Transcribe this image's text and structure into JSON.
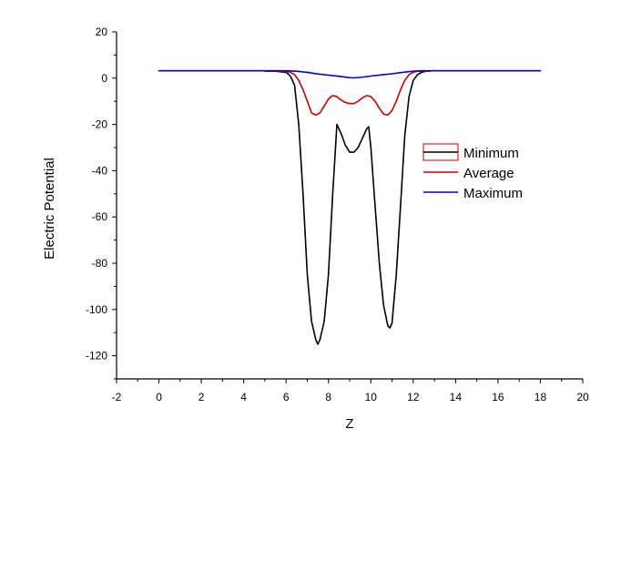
{
  "chart_data": {
    "type": "line",
    "title": "",
    "xlabel": "Z",
    "ylabel": "Electric Potential",
    "xlim": [
      -2,
      20
    ],
    "ylim": [
      -130,
      20
    ],
    "xticks": [
      "-2",
      "0",
      "2",
      "4",
      "6",
      "8",
      "10",
      "12",
      "14",
      "16",
      "18",
      "20"
    ],
    "yticks": [
      "20",
      "0",
      "-20",
      "-40",
      "-60",
      "-80",
      "-100",
      "-120"
    ],
    "grid": false,
    "legend_position": "right",
    "series": [
      {
        "name": "Minimum",
        "color": "#000000",
        "x": [
          5.0,
          5.5,
          6.0,
          6.2,
          6.4,
          6.6,
          6.8,
          7.0,
          7.2,
          7.4,
          7.5,
          7.6,
          7.8,
          8.0,
          8.2,
          8.4,
          8.6,
          8.8,
          9.0,
          9.2,
          9.4,
          9.6,
          9.8,
          9.9,
          10.0,
          10.2,
          10.4,
          10.6,
          10.8,
          10.9,
          11.0,
          11.2,
          11.4,
          11.6,
          11.8,
          12.0,
          12.2,
          12.4,
          12.6,
          12.8
        ],
        "y": [
          3,
          3,
          2.5,
          1,
          -3,
          -20,
          -50,
          -85,
          -105,
          -113,
          -115,
          -113,
          -105,
          -85,
          -50,
          -20,
          -24,
          -29,
          -32,
          -32,
          -30,
          -26,
          -22,
          -21,
          -30,
          -55,
          -80,
          -98,
          -107,
          -108,
          -106,
          -85,
          -55,
          -25,
          -8,
          -1,
          1.5,
          2.5,
          3,
          3
        ]
      },
      {
        "name": "Average",
        "color": "#cc0000",
        "x": [
          5.0,
          5.5,
          6.0,
          6.2,
          6.4,
          6.6,
          6.8,
          7.0,
          7.2,
          7.4,
          7.6,
          7.8,
          8.0,
          8.2,
          8.4,
          8.6,
          8.8,
          9.0,
          9.2,
          9.4,
          9.6,
          9.8,
          10.0,
          10.2,
          10.4,
          10.6,
          10.8,
          11.0,
          11.2,
          11.4,
          11.6,
          11.8,
          12.0,
          12.2,
          12.4,
          12.6,
          12.8
        ],
        "y": [
          3,
          3,
          3,
          2.5,
          1.5,
          -1,
          -5,
          -10,
          -15,
          -16,
          -15,
          -12,
          -9,
          -7.5,
          -8,
          -9.5,
          -10.5,
          -11,
          -11,
          -10,
          -8.5,
          -7.5,
          -8,
          -10,
          -13,
          -15.5,
          -16,
          -14,
          -10,
          -5,
          -1,
          1.5,
          2.5,
          3,
          3,
          3,
          3
        ]
      },
      {
        "name": "Maximum",
        "color": "#0000cc",
        "x": [
          0.0,
          2.0,
          4.0,
          6.0,
          6.5,
          7.0,
          7.5,
          8.0,
          8.5,
          9.0,
          9.2,
          9.5,
          10.0,
          10.5,
          11.0,
          11.5,
          12.0,
          12.5,
          13.0,
          14.0,
          16.0,
          18.0
        ],
        "y": [
          3.2,
          3.2,
          3.2,
          3.2,
          3.0,
          2.5,
          1.8,
          1.3,
          0.8,
          0.2,
          0.1,
          0.3,
          0.9,
          1.4,
          1.9,
          2.5,
          3.0,
          3.2,
          3.2,
          3.2,
          3.2,
          3.2
        ]
      }
    ]
  }
}
